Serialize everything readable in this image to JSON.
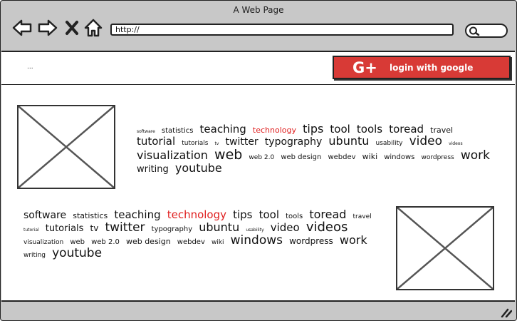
{
  "window": {
    "title": "A Web Page"
  },
  "toolbar": {
    "url": "http://",
    "icons": [
      "back-arrow-icon",
      "forward-arrow-icon",
      "close-icon",
      "home-icon"
    ],
    "search_icon": "search-icon"
  },
  "topstrip": {
    "dots": "...",
    "google_button": {
      "icon": "G+",
      "label": "login with google",
      "color": "#d83a36"
    }
  },
  "accent_color": "#e02020",
  "cloud1": [
    {
      "t": "software",
      "s": 6
    },
    {
      "t": "statistics",
      "s": 10
    },
    {
      "t": "teaching",
      "s": 15
    },
    {
      "t": "technology",
      "s": 11,
      "hl": true
    },
    {
      "t": "tips",
      "s": 16
    },
    {
      "t": "tool",
      "s": 15
    },
    {
      "t": "tools",
      "s": 15
    },
    {
      "t": "toread",
      "s": 15
    },
    {
      "t": "travel",
      "s": 11
    },
    {
      "t": "tutorial",
      "s": 15
    },
    {
      "t": "tutorials",
      "s": 9
    },
    {
      "t": "tv",
      "s": 6
    },
    {
      "t": "twitter",
      "s": 14
    },
    {
      "t": "typography",
      "s": 14
    },
    {
      "t": "ubuntu",
      "s": 16
    },
    {
      "t": "usability",
      "s": 9
    },
    {
      "t": "video",
      "s": 17
    },
    {
      "t": "videos",
      "s": 6
    },
    {
      "t": "visualization",
      "s": 16
    },
    {
      "t": "web",
      "s": 19
    },
    {
      "t": "web 2.0",
      "s": 9
    },
    {
      "t": "web design",
      "s": 10
    },
    {
      "t": "webdev",
      "s": 10
    },
    {
      "t": "wiki",
      "s": 11
    },
    {
      "t": "windows",
      "s": 10
    },
    {
      "t": "wordpress",
      "s": 9
    },
    {
      "t": "work",
      "s": 17
    },
    {
      "t": "writing",
      "s": 13
    },
    {
      "t": "youtube",
      "s": 16
    }
  ],
  "cloud2": [
    {
      "t": "software",
      "s": 14
    },
    {
      "t": "statistics",
      "s": 11
    },
    {
      "t": "teaching",
      "s": 15
    },
    {
      "t": "technology",
      "s": 15,
      "hl": true
    },
    {
      "t": "tips",
      "s": 15
    },
    {
      "t": "tool",
      "s": 15
    },
    {
      "t": "tools",
      "s": 10
    },
    {
      "t": "toread",
      "s": 16
    },
    {
      "t": "travel",
      "s": 9
    },
    {
      "t": "tutorial",
      "s": 6
    },
    {
      "t": "tutorials",
      "s": 13
    },
    {
      "t": "tv",
      "s": 12
    },
    {
      "t": "twitter",
      "s": 17
    },
    {
      "t": "typography",
      "s": 10
    },
    {
      "t": "ubuntu",
      "s": 16
    },
    {
      "t": "usability",
      "s": 6
    },
    {
      "t": "video",
      "s": 15
    },
    {
      "t": "videos",
      "s": 18
    },
    {
      "t": "visualization",
      "s": 9
    },
    {
      "t": "web",
      "s": 10
    },
    {
      "t": "web 2.0",
      "s": 10
    },
    {
      "t": "web design",
      "s": 11
    },
    {
      "t": "webdev",
      "s": 10
    },
    {
      "t": "wiki",
      "s": 9
    },
    {
      "t": "windows",
      "s": 17
    },
    {
      "t": "wordpress",
      "s": 12
    },
    {
      "t": "work",
      "s": 16
    },
    {
      "t": "writing",
      "s": 9
    },
    {
      "t": "youtube",
      "s": 17
    }
  ]
}
